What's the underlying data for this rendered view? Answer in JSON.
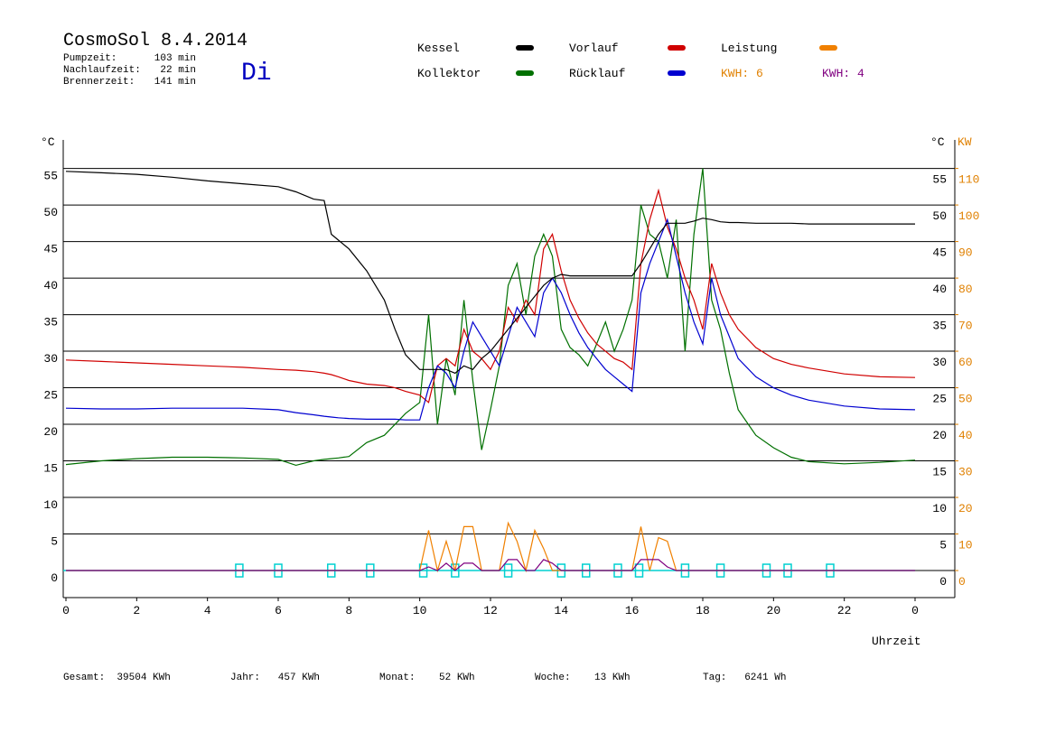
{
  "header": {
    "title": "CosmoSol 8.4.2014",
    "day": "Di",
    "stats": [
      [
        "Pumpzeit:",
        "103 min"
      ],
      [
        "Nachlaufzeit:",
        "22 min"
      ],
      [
        "Brennerzeit:",
        "141 min"
      ]
    ],
    "kwh_labels": [
      {
        "text": "KWH: 6",
        "color": "#e08000"
      },
      {
        "text": "KWH: 4",
        "color": "#800080"
      }
    ]
  },
  "chart_data": {
    "type": "line",
    "y_unit": "°C",
    "y2_unit": "KW",
    "x_label": "Uhrzeit",
    "x": [
      0,
      1,
      2,
      3,
      4,
      5,
      6,
      6.5,
      7,
      7.3,
      7.5,
      7.7,
      8,
      8.5,
      9,
      9.3,
      9.6,
      10,
      10.25,
      10.5,
      10.75,
      11,
      11.25,
      11.5,
      11.75,
      12,
      12.25,
      12.5,
      12.75,
      13,
      13.25,
      13.5,
      13.75,
      14,
      14.25,
      14.5,
      14.75,
      15,
      15.25,
      15.5,
      15.75,
      16,
      16.25,
      16.5,
      16.75,
      17,
      17.25,
      17.5,
      17.75,
      18,
      18.25,
      18.5,
      18.75,
      19,
      19.5,
      20,
      20.5,
      21,
      22,
      23,
      24
    ],
    "xlim": [
      0,
      24
    ],
    "xticks": [
      0,
      2,
      4,
      6,
      8,
      10,
      12,
      14,
      16,
      18,
      20,
      22,
      {
        "value": 24,
        "label": "0"
      }
    ],
    "ylim": [
      -3.7,
      58.9
    ],
    "yticks": [
      0,
      5,
      10,
      15,
      20,
      25,
      30,
      35,
      40,
      45,
      50,
      55
    ],
    "y2lim": [
      -7.4,
      117.8
    ],
    "y2ticks": [
      0,
      10,
      20,
      30,
      40,
      50,
      60,
      70,
      80,
      90,
      100,
      110
    ],
    "grid": true,
    "series": [
      {
        "name": "Kessel",
        "color": "#000000",
        "values": [
          54.6,
          54.4,
          54.2,
          53.8,
          53.3,
          52.9,
          52.5,
          51.8,
          50.8,
          50.6,
          46,
          45.2,
          44,
          41,
          37,
          33,
          29.5,
          27.5,
          27.5,
          27.5,
          27.5,
          27,
          28,
          27.5,
          29,
          30,
          31.5,
          33,
          34.5,
          36,
          37.5,
          39,
          40,
          40.5,
          40.3,
          40.3,
          40.3,
          40.3,
          40.3,
          40.3,
          40.3,
          40.3,
          42,
          44,
          46,
          47.5,
          47.5,
          47.5,
          47.8,
          48.2,
          48,
          47.7,
          47.6,
          47.6,
          47.5,
          47.5,
          47.5,
          47.4,
          47.4,
          47.4,
          47.4
        ]
      },
      {
        "name": "Vorlauf",
        "color": "#d00000",
        "values": [
          28.8,
          28.6,
          28.4,
          28.2,
          28,
          27.8,
          27.5,
          27.4,
          27.2,
          27,
          26.8,
          26.5,
          26,
          25.5,
          25.3,
          25,
          24.5,
          24,
          23,
          28,
          29,
          28,
          33,
          30,
          29,
          27.5,
          30,
          36,
          34,
          37,
          35,
          44,
          46,
          41,
          37,
          34.5,
          32.5,
          31,
          30,
          29,
          28.5,
          27.5,
          42,
          48,
          52,
          47,
          44,
          40,
          37,
          33,
          42,
          38,
          35,
          33,
          30.5,
          29,
          28.2,
          27.7,
          26.9,
          26.5,
          26.4
        ]
      },
      {
        "name": "Leistung",
        "color": "#f08000",
        "axis": "y2",
        "values": [
          0,
          0,
          0,
          0,
          0,
          0,
          0,
          0,
          0,
          0,
          0,
          0,
          0,
          0,
          0,
          0,
          0,
          0,
          11,
          0,
          8,
          0,
          12,
          12,
          0,
          0,
          0,
          13,
          8,
          0,
          11,
          6,
          0,
          0,
          0,
          0,
          0,
          0,
          0,
          0,
          0,
          0,
          12,
          0,
          9,
          8,
          0,
          0,
          0,
          0,
          0,
          0,
          0,
          0,
          0,
          0,
          0,
          0,
          0,
          0,
          0
        ]
      },
      {
        "name": "Kollektor",
        "color": "#007000",
        "values": [
          14.5,
          15,
          15.3,
          15.5,
          15.5,
          15.4,
          15.2,
          14.4,
          15,
          15.2,
          15.3,
          15.4,
          15.6,
          17.5,
          18.5,
          20,
          21.5,
          23,
          35,
          20,
          29,
          24,
          37,
          26,
          16.5,
          22,
          28,
          39,
          42,
          35,
          43,
          46,
          43,
          33,
          30.5,
          29.5,
          28,
          31,
          34,
          30,
          33,
          37,
          50,
          46,
          45,
          40,
          48,
          30,
          46,
          55,
          37,
          33,
          27,
          22,
          18.5,
          16.8,
          15.5,
          14.9,
          14.6,
          14.8,
          15.1
        ]
      },
      {
        "name": "Rücklauf",
        "color": "#0000d0",
        "values": [
          22.2,
          22.1,
          22.1,
          22.2,
          22.2,
          22.2,
          22,
          21.6,
          21.3,
          21.1,
          21,
          20.9,
          20.8,
          20.7,
          20.7,
          20.7,
          20.6,
          20.6,
          25,
          28,
          27,
          25,
          30,
          34,
          32,
          30,
          28,
          32,
          36,
          34,
          32,
          38,
          40,
          38,
          35,
          32.5,
          30.5,
          29,
          27.5,
          26.5,
          25.5,
          24.5,
          38,
          42,
          45,
          48,
          43,
          38,
          34,
          31,
          40,
          35,
          32,
          29,
          26.5,
          25,
          24,
          23.3,
          22.5,
          22.1,
          22
        ]
      },
      {
        "color": "#800080",
        "axis": "y2",
        "values": [
          0,
          0,
          0,
          0,
          0,
          0,
          0,
          0,
          0,
          0,
          0,
          0,
          0,
          0,
          0,
          0,
          0,
          0,
          1,
          0,
          2,
          0,
          2,
          2,
          0,
          0,
          0,
          3,
          3,
          0,
          0,
          3,
          2,
          0,
          0,
          0,
          0,
          0,
          0,
          0,
          0,
          0,
          3,
          3,
          3,
          1,
          0,
          0,
          0,
          0,
          0,
          0,
          0,
          0,
          0,
          0,
          0,
          0,
          0,
          0,
          0
        ]
      }
    ],
    "markers": [
      4.9,
      6,
      7.5,
      8.6,
      10.1,
      11,
      12.5,
      14,
      14.7,
      15.6,
      16.2,
      17.5,
      18.5,
      19.8,
      20.4,
      21.6
    ],
    "marker_color": "#00d0d0"
  },
  "footer": [
    "Gesamt:  39504 KWh",
    "Jahr:   457 KWh",
    "Monat:    52 KWh",
    "Woche:    13 KWh",
    "Tag:   6241 Wh"
  ]
}
